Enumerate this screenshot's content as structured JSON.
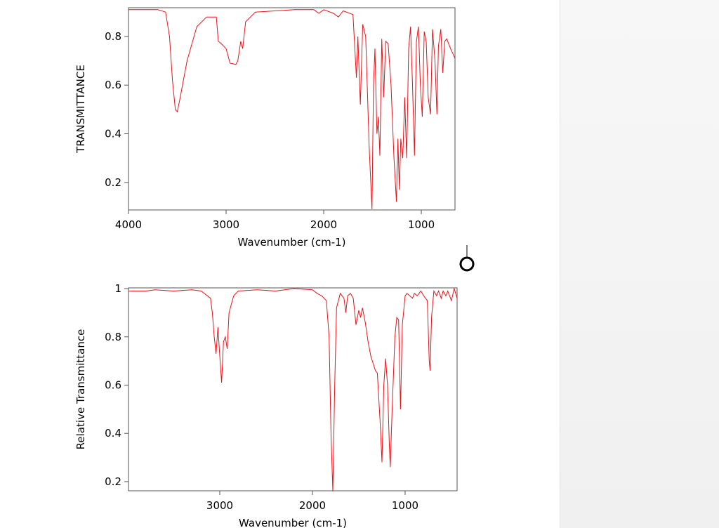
{
  "chart_data": [
    {
      "type": "line",
      "x_label": "Wavenumber (cm-1)",
      "y_label": "TRANSMITTANCE",
      "color": "#e8141a",
      "xlim": [
        4000,
        655
      ],
      "ylim": [
        0.087,
        0.918
      ],
      "xticks": [
        4000,
        3000,
        2000,
        1000
      ],
      "yticks": [
        0.2,
        0.4,
        0.6,
        0.8
      ],
      "x": [
        4000,
        3700,
        3620,
        3580,
        3550,
        3520,
        3500,
        3470,
        3400,
        3300,
        3200,
        3100,
        3080,
        3050,
        3000,
        2960,
        2900,
        2880,
        2850,
        2830,
        2800,
        2700,
        2500,
        2300,
        2100,
        2050,
        2000,
        1900,
        1850,
        1800,
        1700,
        1665,
        1650,
        1625,
        1600,
        1570,
        1535,
        1505,
        1490,
        1475,
        1455,
        1440,
        1425,
        1405,
        1385,
        1365,
        1340,
        1310,
        1280,
        1255,
        1240,
        1225,
        1210,
        1190,
        1170,
        1150,
        1130,
        1110,
        1090,
        1070,
        1050,
        1030,
        1010,
        990,
        970,
        950,
        930,
        905,
        885,
        860,
        840,
        825,
        800,
        780,
        760,
        740,
        700,
        655
      ],
      "values": [
        0.91,
        0.91,
        0.9,
        0.8,
        0.62,
        0.5,
        0.49,
        0.55,
        0.7,
        0.84,
        0.88,
        0.88,
        0.78,
        0.77,
        0.75,
        0.69,
        0.685,
        0.7,
        0.78,
        0.75,
        0.86,
        0.9,
        0.905,
        0.91,
        0.91,
        0.895,
        0.91,
        0.895,
        0.88,
        0.905,
        0.89,
        0.63,
        0.8,
        0.52,
        0.85,
        0.8,
        0.35,
        0.09,
        0.6,
        0.75,
        0.4,
        0.47,
        0.31,
        0.79,
        0.55,
        0.78,
        0.77,
        0.6,
        0.3,
        0.12,
        0.38,
        0.17,
        0.38,
        0.3,
        0.55,
        0.3,
        0.75,
        0.84,
        0.6,
        0.31,
        0.78,
        0.84,
        0.6,
        0.47,
        0.82,
        0.78,
        0.55,
        0.48,
        0.83,
        0.7,
        0.48,
        0.76,
        0.83,
        0.65,
        0.78,
        0.79,
        0.75,
        0.71
      ]
    },
    {
      "type": "line",
      "x_label": "Wavenumber (cm-1)",
      "y_label": "Relative Transmittance",
      "color": "#e8141a",
      "xlim": [
        3985,
        439
      ],
      "ylim": [
        0.162,
        1.003
      ],
      "xticks": [
        3000,
        2000,
        1000
      ],
      "yticks": [
        0.2,
        0.4,
        0.6,
        0.8,
        1
      ],
      "x": [
        3985,
        3800,
        3700,
        3500,
        3300,
        3200,
        3100,
        3080,
        3060,
        3040,
        3020,
        3000,
        2980,
        2960,
        2940,
        2920,
        2900,
        2850,
        2800,
        2600,
        2400,
        2200,
        2000,
        1950,
        1900,
        1850,
        1820,
        1800,
        1780,
        1760,
        1740,
        1700,
        1660,
        1640,
        1620,
        1590,
        1560,
        1530,
        1500,
        1480,
        1460,
        1430,
        1400,
        1370,
        1320,
        1300,
        1270,
        1250,
        1230,
        1210,
        1190,
        1170,
        1160,
        1140,
        1110,
        1090,
        1070,
        1050,
        1030,
        1000,
        980,
        950,
        920,
        900,
        870,
        830,
        800,
        760,
        740,
        730,
        715,
        690,
        660,
        640,
        610,
        590,
        560,
        540,
        500,
        470,
        439
      ],
      "values": [
        0.99,
        0.99,
        0.995,
        0.99,
        0.995,
        0.99,
        0.96,
        0.9,
        0.8,
        0.73,
        0.84,
        0.72,
        0.61,
        0.78,
        0.8,
        0.75,
        0.9,
        0.97,
        0.99,
        0.995,
        0.99,
        1.0,
        0.995,
        0.98,
        0.97,
        0.95,
        0.8,
        0.4,
        0.16,
        0.6,
        0.92,
        0.98,
        0.96,
        0.9,
        0.97,
        0.98,
        0.96,
        0.85,
        0.91,
        0.88,
        0.92,
        0.86,
        0.78,
        0.72,
        0.66,
        0.65,
        0.45,
        0.28,
        0.6,
        0.71,
        0.6,
        0.35,
        0.26,
        0.5,
        0.8,
        0.88,
        0.87,
        0.5,
        0.85,
        0.97,
        0.98,
        0.97,
        0.96,
        0.98,
        0.97,
        0.99,
        0.97,
        0.95,
        0.7,
        0.66,
        0.88,
        0.99,
        0.97,
        0.99,
        0.96,
        0.99,
        0.97,
        0.99,
        0.95,
        1.0,
        0.96
      ]
    }
  ]
}
